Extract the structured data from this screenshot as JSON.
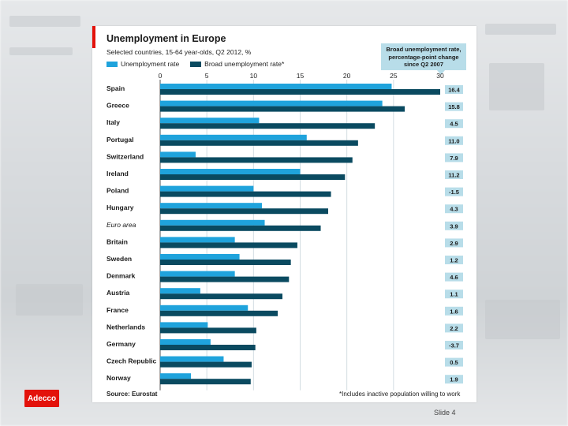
{
  "slide": {
    "number_label": "Slide 4",
    "logo_text": "Adecco"
  },
  "chart_data": {
    "type": "bar",
    "orientation": "horizontal",
    "title": "Unemployment in Europe",
    "subtitle": "Selected countries, 15-64 year-olds, Q2 2012, %",
    "xlim": [
      0,
      30
    ],
    "xticks": [
      0,
      5,
      10,
      15,
      20,
      25,
      30
    ],
    "categories": [
      "Spain",
      "Greece",
      "Italy",
      "Portugal",
      "Switzerland",
      "Ireland",
      "Poland",
      "Hungary",
      "Euro area",
      "Britain",
      "Sweden",
      "Denmark",
      "Austria",
      "France",
      "Netherlands",
      "Germany",
      "Czech Republic",
      "Norway"
    ],
    "italic_categories": [
      "Euro area"
    ],
    "series": [
      {
        "name": "Unemployment rate",
        "color": "#1fa3dc",
        "values": [
          24.8,
          23.8,
          10.6,
          15.7,
          3.8,
          15.0,
          10.0,
          10.9,
          11.2,
          8.0,
          8.5,
          8.0,
          4.3,
          9.4,
          5.1,
          5.4,
          6.8,
          3.3
        ]
      },
      {
        "name": "Broad unemployment rate*",
        "color": "#0a4a60",
        "values": [
          30.8,
          26.2,
          23.0,
          21.2,
          20.6,
          19.8,
          18.3,
          18.0,
          17.2,
          14.7,
          14.0,
          13.8,
          13.1,
          12.6,
          10.3,
          10.2,
          9.8,
          9.7
        ]
      }
    ],
    "change_label": "Broad unemployment rate, percentage-point change since Q2 2007",
    "change_values": [
      "16.4",
      "15.8",
      "4.5",
      "11.0",
      "7.9",
      "11.2",
      "-1.5",
      "4.3",
      "3.9",
      "2.9",
      "1.2",
      "4.6",
      "1.1",
      "1.6",
      "2.2",
      "-3.7",
      "0.5",
      "1.9"
    ],
    "source": "Source: Eurostat",
    "footnote": "*Includes inactive population willing to work",
    "colors": {
      "accent": "#e3120b",
      "callout": "#b8dde9",
      "change_box": "#b8dde9"
    }
  }
}
